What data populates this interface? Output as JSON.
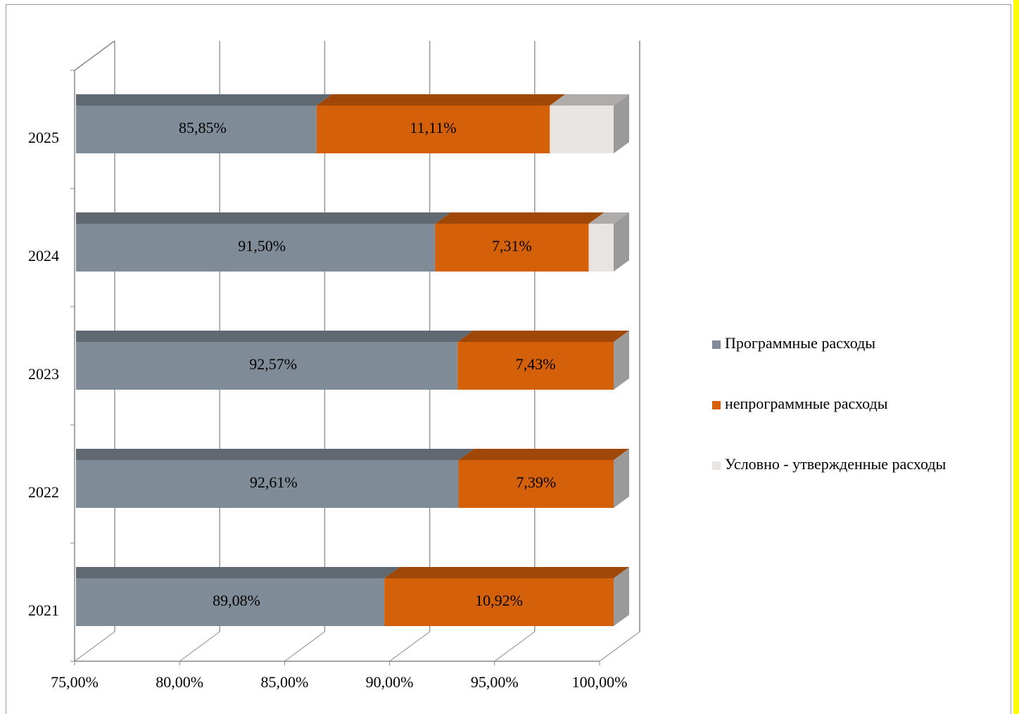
{
  "chart_data": {
    "type": "bar3d_stacked_horizontal",
    "categories": [
      "2021",
      "2022",
      "2023",
      "2024",
      "2025"
    ],
    "series": [
      {
        "name": "Программные расходы",
        "color": "#808b98",
        "values": [
          89.08,
          92.61,
          92.57,
          91.5,
          85.85
        ],
        "value_labels": [
          "89,08%",
          "92,61%",
          "92,57%",
          "91,50%",
          "85,85%"
        ]
      },
      {
        "name": "непрограммные расходы",
        "color": "#d4600a",
        "values": [
          10.92,
          7.39,
          7.43,
          7.31,
          11.11
        ],
        "value_labels": [
          "10,92%",
          "7,39%",
          "7,43%",
          "7,31%",
          "11,11%"
        ]
      },
      {
        "name": "Условно - утвержденные расходы",
        "color": "#e8e4e2",
        "values": [
          0,
          0,
          0,
          1.19,
          3.04
        ]
      }
    ],
    "xlim": [
      75,
      100
    ],
    "xticks": [
      {
        "value": 75,
        "label": "75,00%"
      },
      {
        "value": 80,
        "label": "80,00%"
      },
      {
        "value": 85,
        "label": "85,00%"
      },
      {
        "value": 90,
        "label": "90,00%"
      },
      {
        "value": 95,
        "label": "95,00%"
      },
      {
        "value": 100,
        "label": "100,00%"
      }
    ],
    "grid": true,
    "legend": "right"
  }
}
